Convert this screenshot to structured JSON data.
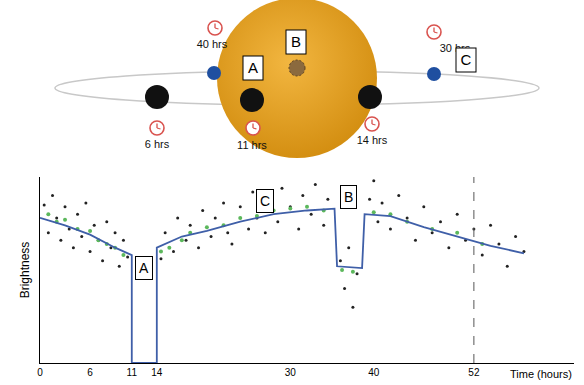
{
  "diagram": {
    "labels": [
      "A",
      "B",
      "C"
    ],
    "times": [
      "6 hrs",
      "11 hrs",
      "14 hrs",
      "30 hrs",
      "40 hrs"
    ]
  },
  "chart_data": {
    "type": "line",
    "y_label": "Brightness",
    "x_label": "Time (hours)",
    "xlim": [
      0,
      64
    ],
    "xticks": [
      0,
      6,
      11,
      14,
      30,
      40,
      52
    ],
    "ylim": [
      0,
      1
    ],
    "tick_labels": "x",
    "grid": false,
    "vertical_line": {
      "x": 52,
      "line_style": "dash"
    },
    "annotations": [
      {
        "text": "A",
        "x": 12.5,
        "y": 0.51
      },
      {
        "text": "C",
        "x": 27,
        "y": 0.87
      },
      {
        "text": "B",
        "x": 37,
        "y": 0.89
      }
    ],
    "series": [
      {
        "type": "scatter",
        "marker": "dot",
        "color": "#222222",
        "x": [
          0.5,
          1,
          1.5,
          2,
          2.5,
          3,
          3.5,
          4,
          4.5,
          5,
          5.5,
          6,
          6.5,
          7,
          7.5,
          8,
          8.5,
          9,
          9.5,
          10,
          10.5,
          14.5,
          15,
          16,
          16.5,
          17.5,
          18,
          19,
          19.5,
          20.5,
          21,
          22,
          22.5,
          23,
          24,
          25,
          25.5,
          26,
          27,
          27.5,
          28.5,
          29,
          30,
          31,
          31.5,
          32.5,
          33,
          34,
          34.5,
          36,
          36.5,
          37,
          37.5,
          38,
          39.5,
          40,
          40.5,
          41,
          42,
          43,
          44,
          45,
          46,
          47,
          48,
          49,
          50,
          51,
          52,
          53,
          54,
          55,
          56,
          57,
          58
        ],
        "values": [
          0.85,
          0.7,
          0.9,
          0.78,
          0.66,
          0.84,
          0.72,
          0.62,
          0.8,
          0.68,
          0.86,
          0.6,
          0.74,
          0.66,
          0.55,
          0.76,
          0.62,
          0.7,
          0.52,
          0.66,
          0.57,
          0.56,
          0.7,
          0.6,
          0.78,
          0.66,
          0.74,
          0.62,
          0.82,
          0.68,
          0.78,
          0.86,
          0.7,
          0.64,
          0.84,
          0.72,
          0.92,
          0.78,
          0.7,
          0.88,
          0.76,
          0.94,
          0.84,
          0.72,
          0.9,
          0.8,
          0.96,
          0.74,
          0.88,
          0.55,
          0.4,
          0.62,
          0.3,
          0.48,
          0.88,
          0.98,
          0.76,
          0.86,
          0.72,
          0.9,
          0.78,
          0.66,
          0.84,
          0.7,
          0.76,
          0.62,
          0.8,
          0.66,
          0.72,
          0.58,
          0.74,
          0.64,
          0.52,
          0.68,
          0.6
        ]
      },
      {
        "type": "scatter",
        "marker": "dot",
        "color": "#5cb85c",
        "x": [
          1,
          2,
          3,
          4.5,
          6,
          7,
          8,
          9,
          10,
          14.5,
          15.5,
          17,
          18,
          20,
          22,
          24,
          26,
          28,
          30,
          32,
          34,
          36.2,
          37.5,
          40,
          42,
          44,
          47,
          50,
          53
        ],
        "values": [
          0.8,
          0.76,
          0.77,
          0.72,
          0.71,
          0.66,
          0.64,
          0.62,
          0.58,
          0.6,
          0.62,
          0.66,
          0.7,
          0.73,
          0.74,
          0.78,
          0.79,
          0.82,
          0.83,
          0.84,
          0.82,
          0.5,
          0.49,
          0.81,
          0.8,
          0.76,
          0.72,
          0.7,
          0.64
        ]
      },
      {
        "type": "line",
        "line_style": "solid",
        "color": "#3f5fa8",
        "x": [
          0,
          3,
          6,
          9,
          11,
          11,
          14,
          14,
          17,
          20,
          24,
          28,
          32,
          35.3,
          35.6,
          38.6,
          38.9,
          42,
          46,
          50,
          54,
          58
        ],
        "values": [
          0.78,
          0.74,
          0.69,
          0.62,
          0.58,
          0.0,
          0.0,
          0.62,
          0.68,
          0.71,
          0.76,
          0.8,
          0.82,
          0.83,
          0.52,
          0.51,
          0.8,
          0.79,
          0.73,
          0.68,
          0.63,
          0.59
        ]
      }
    ]
  }
}
